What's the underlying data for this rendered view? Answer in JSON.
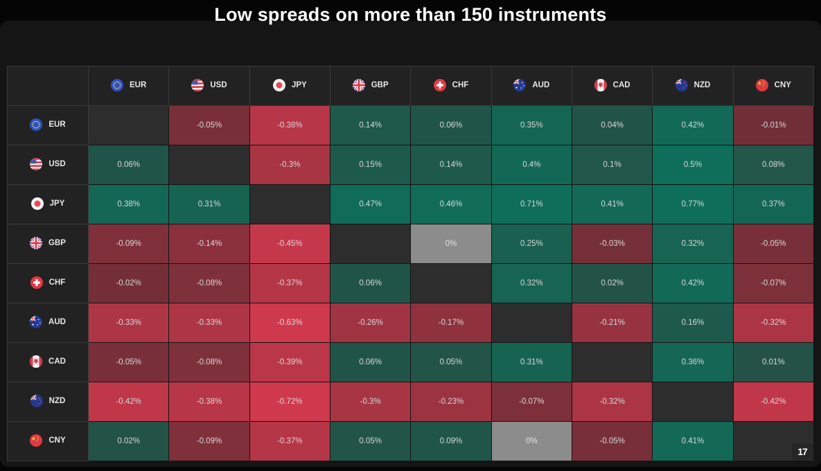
{
  "title": "Low spreads on more than 150 instruments",
  "logo": {
    "name": "tradingview-logo",
    "text": "17"
  },
  "colors": {
    "page_bg": "#050505",
    "panel_bg": "#151515",
    "header_bg": "#222222",
    "diagonal_bg": "#2d2d2d",
    "zero_bg": "#8c8c8c",
    "positive_weak": "#245146",
    "positive_strong": "#0f6e59",
    "negative_weak": "#6f2e37",
    "negative_strong": "#ce394d",
    "cell_text": "#d9d9d9",
    "title_text": "#ffffff"
  },
  "currencies": [
    {
      "code": "EUR",
      "icon": "eur-flag-icon"
    },
    {
      "code": "USD",
      "icon": "usd-flag-icon"
    },
    {
      "code": "JPY",
      "icon": "jpy-flag-icon"
    },
    {
      "code": "GBP",
      "icon": "gbp-flag-icon"
    },
    {
      "code": "CHF",
      "icon": "chf-flag-icon"
    },
    {
      "code": "AUD",
      "icon": "aud-flag-icon"
    },
    {
      "code": "CAD",
      "icon": "cad-flag-icon"
    },
    {
      "code": "NZD",
      "icon": "nzd-flag-icon"
    },
    {
      "code": "CNY",
      "icon": "cny-flag-icon"
    }
  ],
  "chart_data": {
    "type": "heatmap",
    "title": "Low spreads on more than 150 instruments",
    "unit": "%",
    "rows": [
      "EUR",
      "USD",
      "JPY",
      "GBP",
      "CHF",
      "AUD",
      "CAD",
      "NZD",
      "CNY"
    ],
    "columns": [
      "EUR",
      "USD",
      "JPY",
      "GBP",
      "CHF",
      "AUD",
      "CAD",
      "NZD",
      "CNY"
    ],
    "values": [
      [
        null,
        -0.05,
        -0.38,
        0.14,
        0.06,
        0.35,
        0.04,
        0.42,
        -0.01
      ],
      [
        0.06,
        null,
        -0.3,
        0.15,
        0.14,
        0.4,
        0.1,
        0.5,
        0.08
      ],
      [
        0.38,
        0.31,
        null,
        0.47,
        0.46,
        0.71,
        0.41,
        0.77,
        0.37
      ],
      [
        -0.09,
        -0.14,
        -0.45,
        null,
        0,
        0.25,
        -0.03,
        0.32,
        -0.05
      ],
      [
        -0.02,
        -0.08,
        -0.37,
        0.06,
        null,
        0.32,
        0.02,
        0.42,
        -0.07
      ],
      [
        -0.33,
        -0.33,
        -0.63,
        -0.26,
        -0.17,
        null,
        -0.21,
        0.16,
        -0.32
      ],
      [
        -0.05,
        -0.08,
        -0.39,
        0.06,
        0.05,
        0.31,
        null,
        0.36,
        0.01
      ],
      [
        -0.42,
        -0.38,
        -0.72,
        -0.3,
        -0.23,
        -0.07,
        -0.32,
        null,
        -0.42
      ],
      [
        0.02,
        -0.09,
        -0.37,
        0.05,
        0.09,
        0,
        -0.05,
        0.41,
        null
      ]
    ],
    "labels": [
      [
        "",
        "-0.05%",
        "-0.38%",
        "0.14%",
        "0.06%",
        "0.35%",
        "0.04%",
        "0.42%",
        "-0.01%"
      ],
      [
        "0.06%",
        "",
        "-0.3%",
        "0.15%",
        "0.14%",
        "0.4%",
        "0.1%",
        "0.5%",
        "0.08%"
      ],
      [
        "0.38%",
        "0.31%",
        "",
        "0.47%",
        "0.46%",
        "0.71%",
        "0.41%",
        "0.77%",
        "0.37%"
      ],
      [
        "-0.09%",
        "-0.14%",
        "-0.45%",
        "",
        "0%",
        "0.25%",
        "-0.03%",
        "0.32%",
        "-0.05%"
      ],
      [
        "-0.02%",
        "-0.08%",
        "-0.37%",
        "0.06%",
        "",
        "0.32%",
        "0.02%",
        "0.42%",
        "-0.07%"
      ],
      [
        "-0.33%",
        "-0.33%",
        "-0.63%",
        "-0.26%",
        "-0.17%",
        "",
        "-0.21%",
        "0.16%",
        "-0.32%"
      ],
      [
        "-0.05%",
        "-0.08%",
        "-0.39%",
        "0.06%",
        "0.05%",
        "0.31%",
        "",
        "0.36%",
        "0.01%"
      ],
      [
        "-0.42%",
        "-0.38%",
        "-0.72%",
        "-0.3%",
        "-0.23%",
        "-0.07%",
        "-0.32%",
        "",
        "-0.42%"
      ],
      [
        "0.02%",
        "-0.09%",
        "-0.37%",
        "0.05%",
        "0.09%",
        "0%",
        "-0.05%",
        "0.41%",
        ""
      ]
    ]
  }
}
